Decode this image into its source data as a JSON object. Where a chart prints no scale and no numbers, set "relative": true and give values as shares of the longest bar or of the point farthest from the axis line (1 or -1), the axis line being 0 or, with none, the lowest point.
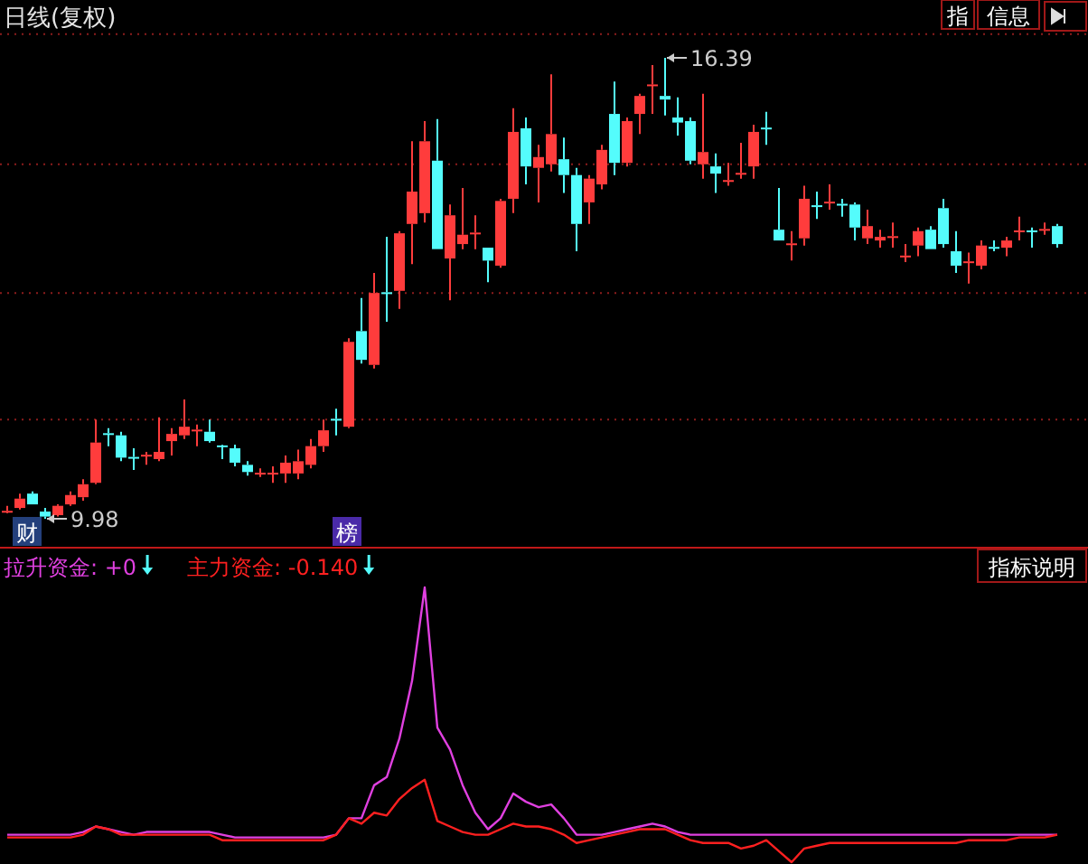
{
  "chart_data": [
    {
      "type": "candlestick",
      "title": "日线(复权)",
      "categories": [
        null,
        null,
        null,
        null,
        null,
        null,
        null,
        null,
        null,
        null,
        null,
        null,
        null,
        null,
        null,
        null,
        null,
        null,
        null,
        null,
        null,
        null,
        null,
        null,
        null,
        null,
        null,
        null,
        null,
        null,
        null,
        null,
        null,
        null,
        null,
        null,
        null,
        null,
        null,
        null,
        null,
        null,
        null,
        null,
        null,
        null,
        null,
        null,
        null,
        null,
        null,
        null,
        null,
        null,
        null,
        null,
        null,
        null,
        null,
        null,
        null,
        null,
        null,
        null,
        null,
        null,
        null,
        null,
        null,
        null,
        null,
        null,
        null,
        null,
        null,
        null,
        null,
        null,
        null,
        null,
        null,
        null,
        null,
        null
      ],
      "ohlc": [
        [
          10.08,
          10.16,
          10.06,
          10.09
        ],
        [
          10.13,
          10.33,
          10.11,
          10.26
        ],
        [
          10.33,
          10.36,
          10.18,
          10.18
        ],
        [
          10.08,
          10.13,
          9.98,
          10.01
        ],
        [
          10.03,
          10.18,
          10.01,
          10.16
        ],
        [
          10.18,
          10.36,
          10.16,
          10.31
        ],
        [
          10.28,
          10.53,
          10.23,
          10.46
        ],
        [
          10.48,
          11.36,
          10.46,
          11.04
        ],
        [
          11.17,
          11.24,
          10.99,
          11.16
        ],
        [
          11.14,
          11.19,
          10.78,
          10.83
        ],
        [
          10.84,
          10.96,
          10.66,
          10.83
        ],
        [
          10.86,
          10.91,
          10.73,
          10.87
        ],
        [
          10.81,
          11.39,
          10.78,
          10.91
        ],
        [
          11.06,
          11.24,
          10.86,
          11.16
        ],
        [
          11.14,
          11.64,
          11.09,
          11.26
        ],
        [
          11.21,
          11.29,
          10.99,
          11.22
        ],
        [
          11.19,
          11.36,
          11.04,
          11.06
        ],
        [
          11.0,
          11.01,
          10.81,
          10.99
        ],
        [
          10.96,
          11.01,
          10.71,
          10.76
        ],
        [
          10.73,
          10.78,
          10.58,
          10.63
        ],
        [
          10.61,
          10.68,
          10.56,
          10.62
        ],
        [
          10.61,
          10.71,
          10.48,
          10.62
        ],
        [
          10.61,
          10.86,
          10.48,
          10.76
        ],
        [
          10.61,
          10.94,
          10.53,
          10.78
        ],
        [
          10.73,
          11.09,
          10.68,
          10.99
        ],
        [
          10.99,
          11.36,
          10.91,
          11.21
        ],
        [
          11.37,
          11.51,
          11.14,
          11.36
        ],
        [
          11.26,
          12.49,
          11.24,
          12.44
        ],
        [
          12.59,
          13.05,
          12.14,
          12.19
        ],
        [
          12.12,
          13.4,
          12.07,
          13.12
        ],
        [
          13.13,
          13.9,
          12.72,
          13.12
        ],
        [
          13.15,
          13.98,
          12.9,
          13.95
        ],
        [
          14.08,
          15.23,
          13.52,
          14.53
        ],
        [
          14.23,
          15.51,
          14.1,
          15.23
        ],
        [
          14.96,
          15.54,
          13.73,
          13.73
        ],
        [
          13.6,
          14.35,
          13.02,
          14.2
        ],
        [
          13.8,
          14.58,
          13.73,
          13.93
        ],
        [
          13.95,
          14.2,
          13.73,
          13.96
        ],
        [
          13.75,
          13.75,
          13.27,
          13.57
        ],
        [
          13.5,
          14.43,
          13.47,
          14.4
        ],
        [
          14.43,
          15.69,
          14.23,
          15.36
        ],
        [
          15.41,
          15.56,
          14.63,
          14.88
        ],
        [
          14.86,
          15.18,
          14.38,
          15.01
        ],
        [
          14.91,
          16.16,
          14.81,
          15.33
        ],
        [
          14.98,
          15.28,
          14.51,
          14.76
        ],
        [
          14.76,
          14.86,
          13.7,
          14.08
        ],
        [
          14.38,
          14.76,
          14.08,
          14.71
        ],
        [
          14.63,
          15.18,
          14.56,
          15.11
        ],
        [
          15.61,
          16.06,
          14.76,
          14.93
        ],
        [
          14.93,
          15.56,
          14.88,
          15.51
        ],
        [
          15.61,
          15.89,
          15.33,
          15.86
        ],
        [
          16.01,
          16.29,
          15.61,
          16.02
        ],
        [
          15.86,
          16.39,
          15.59,
          15.81
        ],
        [
          15.56,
          15.84,
          15.31,
          15.49
        ],
        [
          15.51,
          15.56,
          14.91,
          14.96
        ],
        [
          14.91,
          15.89,
          14.71,
          15.08
        ],
        [
          14.88,
          15.06,
          14.51,
          14.78
        ],
        [
          14.68,
          14.93,
          14.61,
          14.69
        ],
        [
          14.78,
          15.21,
          14.71,
          14.79
        ],
        [
          14.88,
          15.46,
          14.71,
          15.36
        ],
        [
          15.42,
          15.64,
          15.18,
          15.41
        ],
        [
          14.0,
          14.58,
          13.85,
          13.85
        ],
        [
          13.8,
          13.98,
          13.57,
          13.81
        ],
        [
          13.88,
          14.61,
          13.78,
          14.43
        ],
        [
          14.34,
          14.53,
          14.15,
          14.33
        ],
        [
          14.38,
          14.63,
          14.28,
          14.39
        ],
        [
          14.36,
          14.43,
          14.18,
          14.35
        ],
        [
          14.35,
          14.38,
          13.85,
          14.03
        ],
        [
          13.88,
          14.28,
          13.8,
          14.05
        ],
        [
          13.85,
          14.0,
          13.75,
          13.9
        ],
        [
          13.9,
          14.1,
          13.75,
          13.91
        ],
        [
          13.63,
          13.8,
          13.55,
          13.64
        ],
        [
          13.78,
          14.03,
          13.63,
          13.98
        ],
        [
          14.0,
          14.05,
          13.73,
          13.73
        ],
        [
          14.3,
          14.43,
          13.75,
          13.8
        ],
        [
          13.7,
          13.98,
          13.4,
          13.5
        ],
        [
          13.55,
          13.68,
          13.25,
          13.56
        ],
        [
          13.5,
          13.85,
          13.45,
          13.78
        ],
        [
          13.76,
          13.85,
          13.7,
          13.75
        ],
        [
          13.75,
          13.9,
          13.63,
          13.85
        ],
        [
          13.98,
          14.18,
          13.85,
          13.99
        ],
        [
          13.99,
          14.03,
          13.75,
          13.98
        ],
        [
          14.0,
          14.1,
          13.93,
          14.01
        ],
        [
          14.05,
          14.08,
          13.75,
          13.8
        ]
      ],
      "colors": [
        "#ff3c3c",
        "#ff3c3c",
        "#54fcfc",
        "#54fcfc",
        "#ff3c3c",
        "#ff3c3c",
        "#ff3c3c",
        "#ff3c3c",
        "#54fcfc",
        "#54fcfc",
        "#54fcfc",
        "#ff3c3c",
        "#ff3c3c",
        "#ff3c3c",
        "#ff3c3c",
        "#ff3c3c",
        "#54fcfc",
        "#54fcfc",
        "#54fcfc",
        "#54fcfc",
        "#ff3c3c",
        "#ff3c3c",
        "#ff3c3c",
        "#ff3c3c",
        "#ff3c3c",
        "#ff3c3c",
        "#54fcfc",
        "#ff3c3c",
        "#54fcfc",
        "#ff3c3c",
        "#54fcfc",
        "#ff3c3c",
        "#ff3c3c",
        "#ff3c3c",
        "#54fcfc",
        "#ff3c3c",
        "#ff3c3c",
        "#ff3c3c",
        "#54fcfc",
        "#ff3c3c",
        "#ff3c3c",
        "#54fcfc",
        "#ff3c3c",
        "#ff3c3c",
        "#54fcfc",
        "#54fcfc",
        "#ff3c3c",
        "#ff3c3c",
        "#54fcfc",
        "#ff3c3c",
        "#ff3c3c",
        "#ff3c3c",
        "#54fcfc",
        "#54fcfc",
        "#54fcfc",
        "#ff3c3c",
        "#54fcfc",
        "#ff3c3c",
        "#ff3c3c",
        "#ff3c3c",
        "#54fcfc",
        "#54fcfc",
        "#ff3c3c",
        "#ff3c3c",
        "#54fcfc",
        "#ff3c3c",
        "#54fcfc",
        "#54fcfc",
        "#ff3c3c",
        "#ff3c3c",
        "#ff3c3c",
        "#ff3c3c",
        "#ff3c3c",
        "#54fcfc",
        "#54fcfc",
        "#54fcfc",
        "#ff3c3c",
        "#ff3c3c",
        "#54fcfc",
        "#ff3c3c",
        "#ff3c3c",
        "#54fcfc",
        "#ff3c3c",
        "#54fcfc"
      ],
      "yticks": [
        {
          "value": 11.36,
          "label": null
        },
        {
          "value": 13.12,
          "label": null
        },
        {
          "value": 14.91,
          "label": null
        },
        {
          "value": 16.72,
          "label": null
        }
      ],
      "grid": "y",
      "annotations": [
        "16.39",
        "9.98",
        "财",
        "榜",
        "指",
        "信息"
      ]
    },
    {
      "type": "line",
      "relative": true,
      "legend": "top left",
      "categories": [
        null,
        null,
        null,
        null,
        null,
        null,
        null,
        null,
        null,
        null,
        null,
        null,
        null,
        null,
        null,
        null,
        null,
        null,
        null,
        null,
        null,
        null,
        null,
        null,
        null,
        null,
        null,
        null,
        null,
        null,
        null,
        null,
        null,
        null,
        null,
        null,
        null,
        null,
        null,
        null,
        null,
        null,
        null,
        null,
        null,
        null,
        null,
        null,
        null,
        null,
        null,
        null,
        null,
        null,
        null,
        null,
        null,
        null,
        null,
        null,
        null,
        null,
        null,
        null,
        null,
        null,
        null,
        null,
        null,
        null,
        null,
        null,
        null,
        null,
        null,
        null,
        null,
        null,
        null,
        null,
        null,
        null,
        null,
        null
      ],
      "series": [
        {
          "name": "拉升资金: +0",
          "color": "#e040e0",
          "values": [
            0.1,
            0.1,
            0.1,
            0.1,
            0.1,
            0.1,
            0.11,
            0.13,
            0.12,
            0.11,
            0.1,
            0.11,
            0.11,
            0.11,
            0.11,
            0.11,
            0.11,
            0.1,
            0.09,
            0.09,
            0.09,
            0.09,
            0.09,
            0.09,
            0.09,
            0.09,
            0.1,
            0.16,
            0.16,
            0.28,
            0.31,
            0.45,
            0.66,
            1.0,
            0.49,
            0.41,
            0.28,
            0.18,
            0.12,
            0.16,
            0.25,
            0.22,
            0.2,
            0.21,
            0.16,
            0.1,
            0.1,
            0.1,
            0.11,
            0.12,
            0.13,
            0.14,
            0.13,
            0.11,
            0.1,
            0.1,
            0.1,
            0.1,
            0.1,
            0.1,
            0.1,
            0.1,
            0.1,
            0.1,
            0.1,
            0.1,
            0.1,
            0.1,
            0.1,
            0.1,
            0.1,
            0.1,
            0.1,
            0.1,
            0.1,
            0.1,
            0.1,
            0.1,
            0.1,
            0.1,
            0.1,
            0.1,
            0.1,
            0.1
          ]
        },
        {
          "name": "主力资金: -0.140",
          "color": "#ff2020",
          "values": [
            0.09,
            0.09,
            0.09,
            0.09,
            0.09,
            0.09,
            0.1,
            0.13,
            0.12,
            0.1,
            0.1,
            0.1,
            0.1,
            0.1,
            0.1,
            0.1,
            0.1,
            0.08,
            0.08,
            0.08,
            0.08,
            0.08,
            0.08,
            0.08,
            0.08,
            0.08,
            0.1,
            0.16,
            0.14,
            0.18,
            0.17,
            0.23,
            0.27,
            0.3,
            0.15,
            0.13,
            0.11,
            0.1,
            0.1,
            0.12,
            0.14,
            0.13,
            0.13,
            0.12,
            0.1,
            0.07,
            0.08,
            0.09,
            0.1,
            0.11,
            0.12,
            0.12,
            0.12,
            0.1,
            0.08,
            0.07,
            0.07,
            0.07,
            0.05,
            0.06,
            0.08,
            0.04,
            0.0,
            0.05,
            0.06,
            0.07,
            0.07,
            0.07,
            0.07,
            0.07,
            0.07,
            0.07,
            0.07,
            0.07,
            0.07,
            0.07,
            0.08,
            0.08,
            0.08,
            0.08,
            0.09,
            0.09,
            0.09,
            0.1
          ]
        }
      ],
      "annotations": [
        "指标说明"
      ]
    }
  ]
}
